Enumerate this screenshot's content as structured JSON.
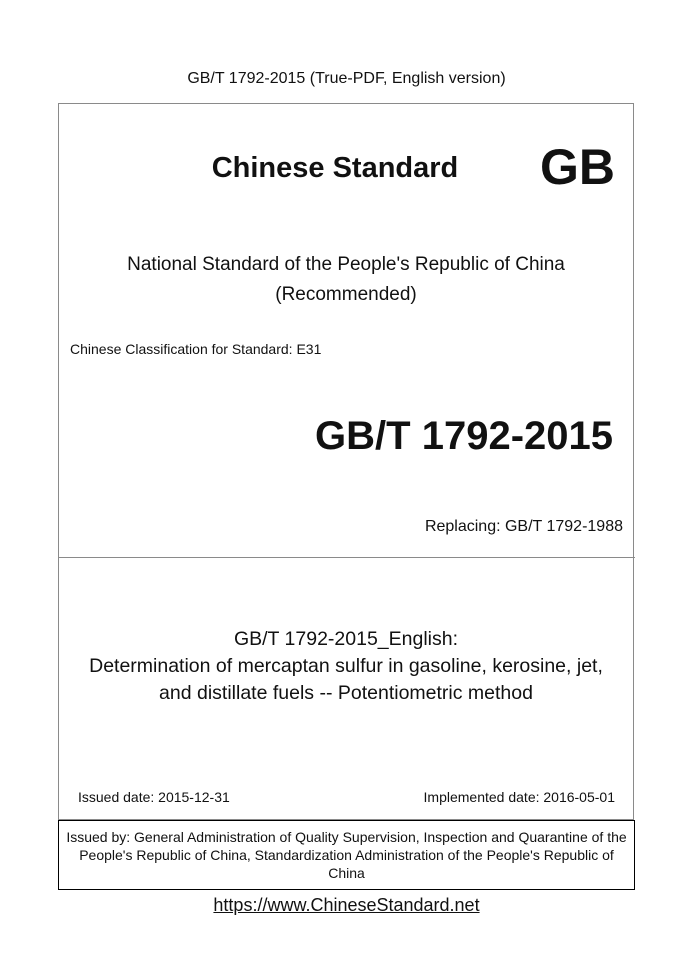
{
  "header": "GB/T 1792-2015 (True-PDF, English version)",
  "cover": {
    "brand": "Chinese Standard",
    "logo": "GB",
    "national_line1": "National Standard of the People's Republic of China",
    "national_line2": "(Recommended)",
    "classification": "Chinese Classification for Standard: E31",
    "code": "GB/T 1792-2015",
    "replacing": "Replacing: GB/T 1792-1988",
    "title_line1": "GB/T 1792-2015_English:",
    "title_line2": "Determination of mercaptan sulfur in gasoline, kerosine, jet,",
    "title_line3": "and distillate fuels -- Potentiometric method",
    "issued_date": "Issued date: 2015-12-31",
    "implemented_date": "Implemented date: 2016-05-01",
    "issued_by": "Issued by: General Administration of Quality Supervision, Inspection and Quarantine of the People's Republic of China, Standardization Administration of the People's Republic of China"
  },
  "footer_url": "https://www.ChineseStandard.net"
}
